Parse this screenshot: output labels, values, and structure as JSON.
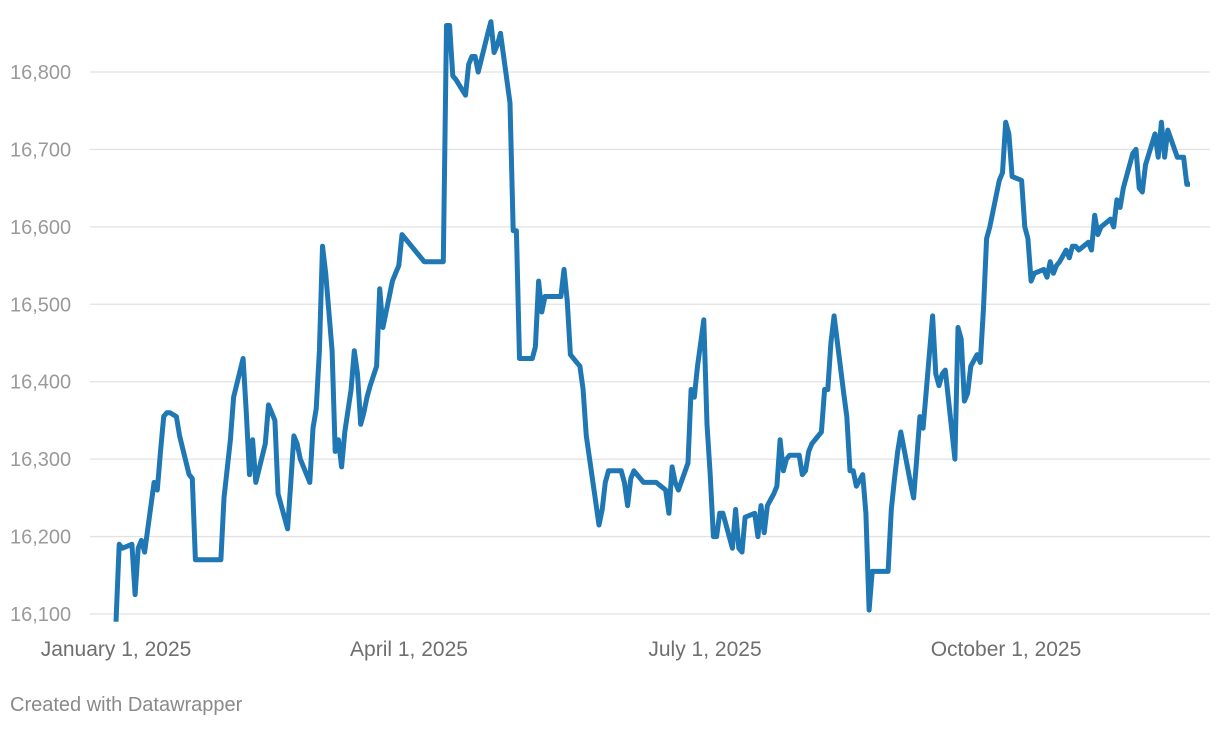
{
  "chart_data": {
    "type": "line",
    "title": "",
    "xlabel": "",
    "ylabel": "",
    "ylim": [
      16090,
      16875
    ],
    "xlim": [
      "2025-01-01",
      "2025-12-05"
    ],
    "grid": "horizontal",
    "line_color": "#1f77b4",
    "y_ticks": [
      16100,
      16200,
      16300,
      16400,
      16500,
      16600,
      16700,
      16800
    ],
    "y_tick_labels": [
      "16,100",
      "16,200",
      "16,300",
      "16,400",
      "16,500",
      "16,600",
      "16,700",
      "16,800"
    ],
    "x_ticks": [
      {
        "date": "2025-01-01",
        "label": "January 1, 2025"
      },
      {
        "date": "2025-04-01",
        "label": "April 1, 2025"
      },
      {
        "date": "2025-07-01",
        "label": "July 1, 2025"
      },
      {
        "date": "2025-10-01",
        "label": "October 1, 2025"
      }
    ],
    "series": [
      {
        "x": [
          "2025-01-01",
          "2025-01-02",
          "2025-01-03",
          "2025-01-06",
          "2025-01-07",
          "2025-01-08",
          "2025-01-09",
          "2025-01-10",
          "2025-01-13",
          "2025-01-14",
          "2025-01-15",
          "2025-01-16",
          "2025-01-17",
          "2025-01-18",
          "2025-01-20",
          "2025-01-21",
          "2025-01-24",
          "2025-01-25",
          "2025-01-26",
          "2025-01-27",
          "2025-01-28",
          "2025-01-30",
          "2025-02-03",
          "2025-02-04",
          "2025-02-06",
          "2025-02-07",
          "2025-02-10",
          "2025-02-11",
          "2025-02-12",
          "2025-02-13",
          "2025-02-14",
          "2025-02-17",
          "2025-02-18",
          "2025-02-19",
          "2025-02-20",
          "2025-02-21",
          "2025-02-24",
          "2025-02-25",
          "2025-02-26",
          "2025-02-27",
          "2025-02-28",
          "2025-03-03",
          "2025-03-04",
          "2025-03-05",
          "2025-03-06",
          "2025-03-07",
          "2025-03-08",
          "2025-03-10",
          "2025-03-11",
          "2025-03-12",
          "2025-03-13",
          "2025-03-14",
          "2025-03-16",
          "2025-03-17",
          "2025-03-18",
          "2025-03-19",
          "2025-03-20",
          "2025-03-21",
          "2025-03-22",
          "2025-03-24",
          "2025-03-25",
          "2025-03-26",
          "2025-03-27",
          "2025-03-28",
          "2025-03-29",
          "2025-03-31",
          "2025-04-01",
          "2025-04-08",
          "2025-04-09",
          "2025-04-10",
          "2025-04-11",
          "2025-04-14",
          "2025-04-15",
          "2025-04-16",
          "2025-04-17",
          "2025-04-18",
          "2025-04-21",
          "2025-04-22",
          "2025-04-23",
          "2025-04-24",
          "2025-04-25",
          "2025-04-28",
          "2025-04-29",
          "2025-04-30",
          "2025-05-01",
          "2025-05-02",
          "2025-05-05",
          "2025-05-06",
          "2025-05-07",
          "2025-05-08",
          "2025-05-09",
          "2025-05-10",
          "2025-05-12",
          "2025-05-13",
          "2025-05-14",
          "2025-05-15",
          "2025-05-16",
          "2025-05-19",
          "2025-05-20",
          "2025-05-21",
          "2025-05-22",
          "2025-05-23",
          "2025-05-24",
          "2025-05-26",
          "2025-05-27",
          "2025-05-28",
          "2025-05-29",
          "2025-06-02",
          "2025-06-03",
          "2025-06-04",
          "2025-06-05",
          "2025-06-06",
          "2025-06-09",
          "2025-06-10",
          "2025-06-11",
          "2025-06-12",
          "2025-06-13",
          "2025-06-16",
          "2025-06-17",
          "2025-06-18",
          "2025-06-19",
          "2025-06-20",
          "2025-06-23",
          "2025-06-24",
          "2025-06-25",
          "2025-06-26",
          "2025-06-27",
          "2025-06-30",
          "2025-07-01",
          "2025-07-02",
          "2025-07-03",
          "2025-07-04",
          "2025-07-05",
          "2025-07-06",
          "2025-07-07",
          "2025-07-08",
          "2025-07-09",
          "2025-07-10",
          "2025-07-11",
          "2025-07-14",
          "2025-07-15",
          "2025-07-16",
          "2025-07-17",
          "2025-07-18",
          "2025-07-21",
          "2025-07-22",
          "2025-07-23",
          "2025-07-24",
          "2025-07-25",
          "2025-07-27",
          "2025-07-28",
          "2025-07-29",
          "2025-07-30",
          "2025-07-31",
          "2025-08-01",
          "2025-08-04",
          "2025-08-05",
          "2025-08-06",
          "2025-08-07",
          "2025-08-08",
          "2025-08-11",
          "2025-08-12",
          "2025-08-13",
          "2025-08-14",
          "2025-08-15",
          "2025-08-18",
          "2025-08-19",
          "2025-08-20",
          "2025-08-21",
          "2025-08-22",
          "2025-08-24",
          "2025-08-25",
          "2025-08-26",
          "2025-08-27",
          "2025-08-28",
          "2025-08-29",
          "2025-09-01",
          "2025-09-02",
          "2025-09-03",
          "2025-09-04",
          "2025-09-05",
          "2025-09-08",
          "2025-09-09",
          "2025-09-10",
          "2025-09-11",
          "2025-09-12",
          "2025-09-15",
          "2025-09-16",
          "2025-09-17",
          "2025-09-18",
          "2025-09-19",
          "2025-09-22",
          "2025-09-23",
          "2025-09-24",
          "2025-09-25",
          "2025-09-26",
          "2025-09-27",
          "2025-09-29",
          "2025-09-30",
          "2025-10-01",
          "2025-10-02",
          "2025-10-03",
          "2025-10-06",
          "2025-10-07",
          "2025-10-08",
          "2025-10-09",
          "2025-10-10",
          "2025-10-13",
          "2025-10-14",
          "2025-10-15",
          "2025-10-16",
          "2025-10-17",
          "2025-10-20",
          "2025-10-21",
          "2025-10-22",
          "2025-10-23",
          "2025-10-24",
          "2025-10-25",
          "2025-10-27",
          "2025-10-28",
          "2025-10-29",
          "2025-10-30",
          "2025-10-31",
          "2025-11-03",
          "2025-11-04",
          "2025-11-05",
          "2025-11-06",
          "2025-11-07",
          "2025-11-10",
          "2025-11-11",
          "2025-11-12",
          "2025-11-13",
          "2025-11-14",
          "2025-11-17",
          "2025-11-18",
          "2025-11-19",
          "2025-11-20",
          "2025-11-21",
          "2025-11-24",
          "2025-11-25",
          "2025-11-26",
          "2025-11-27",
          "2025-11-28",
          "2025-12-01",
          "2025-12-02",
          "2025-12-03",
          "2025-12-04",
          "2025-12-05"
        ],
        "values": [
          16090,
          16190,
          16185,
          16190,
          16125,
          16185,
          16195,
          16180,
          16270,
          16260,
          16310,
          16355,
          16360,
          16360,
          16355,
          16330,
          16280,
          16275,
          16170,
          16170,
          16170,
          16170,
          16170,
          16250,
          16325,
          16380,
          16430,
          16360,
          16280,
          16325,
          16270,
          16320,
          16370,
          16360,
          16350,
          16255,
          16210,
          16270,
          16330,
          16320,
          16300,
          16270,
          16340,
          16365,
          16440,
          16575,
          16540,
          16440,
          16310,
          16325,
          16290,
          16335,
          16390,
          16440,
          16410,
          16345,
          16360,
          16380,
          16395,
          16420,
          16520,
          16470,
          16490,
          16510,
          16530,
          16550,
          16590,
          16555,
          16555,
          16555,
          16555,
          16555,
          16860,
          16860,
          16795,
          16790,
          16770,
          16810,
          16820,
          16820,
          16800,
          16850,
          16865,
          16825,
          16835,
          16850,
          16760,
          16595,
          16595,
          16430,
          16430,
          16430,
          16430,
          16445,
          16530,
          16490,
          16510,
          16510,
          16510,
          16510,
          16545,
          16505,
          16435,
          16425,
          16420,
          16390,
          16330,
          16215,
          16235,
          16270,
          16285,
          16285,
          16285,
          16270,
          16240,
          16275,
          16285,
          16270,
          16270,
          16270,
          16270,
          16270,
          16260,
          16230,
          16290,
          16270,
          16260,
          16295,
          16390,
          16380,
          16420,
          16450,
          16480,
          16345,
          16280,
          16200,
          16200,
          16230,
          16230,
          16185,
          16235,
          16185,
          16180,
          16225,
          16230,
          16200,
          16240,
          16205,
          16240,
          16255,
          16265,
          16325,
          16285,
          16300,
          16305,
          16305,
          16280,
          16285,
          16310,
          16320,
          16335,
          16390,
          16390,
          16450,
          16485,
          16385,
          16355,
          16285,
          16285,
          16265,
          16280,
          16230,
          16105,
          16155,
          16155,
          16155,
          16155,
          16235,
          16275,
          16310,
          16335,
          16270,
          16250,
          16300,
          16355,
          16340,
          16485,
          16410,
          16395,
          16410,
          16415,
          16300,
          16470,
          16455,
          16375,
          16385,
          16420,
          16435,
          16425,
          16495,
          16585,
          16600,
          16660,
          16670,
          16735,
          16720,
          16665,
          16660,
          16600,
          16585,
          16530,
          16540,
          16545,
          16535,
          16555,
          16540,
          16550,
          16555,
          16570,
          16560,
          16575,
          16575,
          16570,
          16580,
          16570,
          16615,
          16590,
          16600,
          16610,
          16600,
          16635,
          16625,
          16650,
          16695,
          16700,
          16650,
          16645,
          16680,
          16720,
          16690,
          16735,
          16690,
          16725,
          16690,
          16690,
          16690,
          16655,
          16655
        ]
      }
    ]
  },
  "footer": {
    "credit": "Created with Datawrapper"
  }
}
